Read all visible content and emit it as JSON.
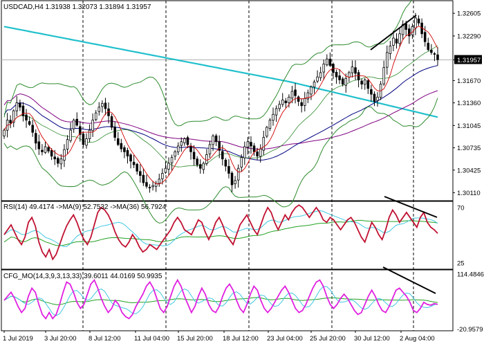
{
  "colors": {
    "background": "#ffffff",
    "frame": "#000000",
    "candle_up": "#000000",
    "candle_down": "#000000",
    "ma_fast": "#d10000",
    "ma_mid": "#000080",
    "ma_slow": "#800080",
    "ma_long": "#20c0cc",
    "bollinger": "#2e8b2e",
    "rsi_line": "#c01030",
    "rsi_ma_fast": "#40c8e0",
    "rsi_ma_slow": "#20a020",
    "cfg_line": "#e020e0",
    "cfg_signal": "#40c8e0",
    "cfg_slow": "#20a020",
    "trendline": "#000000",
    "grid_vertical": "#000000",
    "price_line": "#b0b0b0",
    "current_box_bg": "#000000",
    "current_box_fg": "#ffffff"
  },
  "chart_data": [
    {
      "type": "candlestick",
      "title": "USDCAD,H4  1.31938 1.32073 1.31894 1.31957",
      "current_price": "1.31957",
      "ylim": [
        1.3,
        1.3278
      ],
      "y_ticks": [
        "1.32605",
        "1.32290",
        "1.31957",
        "1.31670",
        "1.31360",
        "1.31045",
        "1.30735",
        "1.30425",
        "1.30110"
      ],
      "x_tick_labels": [
        "1 Jul 2019",
        "3 Jul 20:00",
        "8 Jul 12:00",
        "11 Jul 04:00",
        "15 Jul 20:00",
        "18 Jul 12:00",
        "23 Jul 04:00",
        "25 Jul 20:00",
        "30 Jul 12:00",
        "2 Aug 04:00"
      ],
      "close_path": [
        1.3098,
        1.3112,
        1.3108,
        1.3125,
        1.3136,
        1.313,
        1.3118,
        1.3112,
        1.3106,
        1.3095,
        1.308,
        1.3072,
        1.3068,
        1.3075,
        1.3069,
        1.3062,
        1.3058,
        1.3052,
        1.3058,
        1.3071,
        1.3085,
        1.3098,
        1.3112,
        1.3105,
        1.3092,
        1.3078,
        1.3086,
        1.3098,
        1.3112,
        1.3122,
        1.313,
        1.3135,
        1.3128,
        1.3118,
        1.3102,
        1.3088,
        1.3078,
        1.3072,
        1.3068,
        1.3062,
        1.3055,
        1.305,
        1.3041,
        1.3035,
        1.3025,
        1.302,
        1.3018,
        1.3021,
        1.3024,
        1.303,
        1.3038,
        1.3045,
        1.3052,
        1.306,
        1.3068,
        1.3076,
        1.3082,
        1.3086,
        1.3078,
        1.3068,
        1.3058,
        1.305,
        1.3045,
        1.3052,
        1.3064,
        1.3078,
        1.309,
        1.3082,
        1.307,
        1.3058,
        1.3048,
        1.3038,
        1.3022,
        1.3028,
        1.3045,
        1.306,
        1.3075,
        1.3082,
        1.3076,
        1.3068,
        1.3062,
        1.3072,
        1.3088,
        1.3102,
        1.3112,
        1.312,
        1.3128,
        1.3134,
        1.314,
        1.3136,
        1.3144,
        1.3152,
        1.3146,
        1.3138,
        1.3132,
        1.3142,
        1.315,
        1.3158,
        1.3165,
        1.3172,
        1.3178,
        1.319,
        1.3197,
        1.3188,
        1.3178,
        1.3172,
        1.3168,
        1.3162,
        1.317,
        1.3178,
        1.3186,
        1.3177,
        1.3168,
        1.3162,
        1.3168,
        1.3156,
        1.3148,
        1.3138,
        1.3144,
        1.3162,
        1.3185,
        1.3206,
        1.3215,
        1.3226,
        1.3219,
        1.3232,
        1.3245,
        1.3238,
        1.3229,
        1.3242,
        1.3254,
        1.3247,
        1.3232,
        1.3221,
        1.321,
        1.3206,
        1.3204,
        1.3196
      ],
      "bollinger_upper_start": 1.3157,
      "bollinger_lower_start": 1.3041
    },
    {
      "type": "line",
      "title": "RSI(14) 49.4174  ->MA(9) 52.7532  ->MA(36) 56.7924",
      "ylim": [
        20,
        75
      ],
      "y_ticks": [
        "70",
        "25"
      ],
      "series": [
        {
          "values": [
            48,
            52,
            56,
            50,
            44,
            40,
            46,
            58,
            62,
            55,
            42,
            34,
            30,
            36,
            28,
            32,
            40,
            48,
            55,
            60,
            64,
            58,
            50,
            44,
            40,
            46,
            56,
            66,
            70,
            68,
            64,
            58,
            50,
            44,
            40,
            38,
            42,
            48,
            44,
            38,
            34,
            36,
            40,
            38,
            36,
            40,
            44,
            48,
            52,
            58,
            62,
            58,
            52,
            50,
            48,
            54,
            60,
            58,
            50,
            44,
            50,
            58,
            62,
            56,
            48,
            44,
            40,
            48,
            56,
            60,
            64,
            58,
            52,
            48,
            56,
            64,
            70,
            66,
            58,
            52,
            58,
            64,
            60,
            66,
            70,
            72,
            70,
            66,
            62,
            66,
            70,
            66,
            60,
            58,
            62,
            60,
            56,
            52,
            56,
            60,
            62,
            58,
            52,
            46,
            42,
            50,
            58,
            54,
            48,
            44,
            52,
            62,
            68,
            64,
            58,
            62,
            66,
            62,
            58,
            54,
            62,
            66,
            58,
            54,
            52,
            49
          ]
        }
      ]
    },
    {
      "type": "line",
      "title": "CFG_MO(14,3,9,3,13,33) 39.6011 44.0169 50.9935",
      "ylim": [
        -25,
        125
      ],
      "y_ticks": [
        "114.4846",
        "-20.9579"
      ],
      "series": [
        {
          "values": [
            50,
            60,
            70,
            55,
            35,
            20,
            30,
            60,
            80,
            70,
            40,
            15,
            5,
            20,
            5,
            15,
            40,
            70,
            95,
            90,
            70,
            45,
            30,
            40,
            65,
            90,
            100,
            80,
            55,
            35,
            20,
            30,
            50,
            40,
            20,
            10,
            5,
            15,
            35,
            50,
            65,
            85,
            95,
            80,
            55,
            30,
            20,
            35,
            60,
            85,
            100,
            85,
            60,
            40,
            20,
            35,
            60,
            80,
            65,
            40,
            25,
            20,
            35,
            60,
            80,
            90,
            75,
            50,
            30,
            20,
            40,
            65,
            85,
            75,
            50,
            30,
            20,
            30,
            45,
            60,
            75,
            85,
            70,
            50,
            30,
            20,
            25,
            40,
            60,
            80,
            95,
            100,
            85,
            60,
            40,
            30,
            40,
            55,
            65,
            55,
            40,
            25,
            15,
            20,
            40,
            60,
            75,
            60,
            40,
            25,
            20,
            35,
            55,
            75,
            80,
            70,
            60,
            45,
            25,
            20,
            30,
            45,
            40,
            38,
            42,
            40
          ]
        }
      ]
    }
  ]
}
